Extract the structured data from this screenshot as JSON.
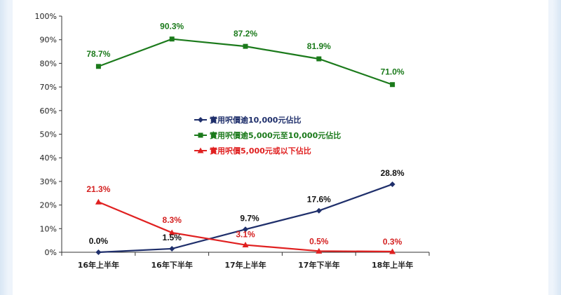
{
  "chart_data": {
    "type": "line",
    "categories": [
      "16年上半年",
      "16年下半年",
      "17年上半年",
      "17年下半年",
      "18年上半年"
    ],
    "ylim": [
      0,
      100
    ],
    "yticks": [
      "0%",
      "10%",
      "20%",
      "30%",
      "40%",
      "50%",
      "60%",
      "70%",
      "80%",
      "90%",
      "100%"
    ],
    "grid": false,
    "legend_position": "center",
    "series": [
      {
        "name": "實用呎價逾10,000元佔比",
        "color": "#1f2f6b",
        "marker": "diamond",
        "values": [
          0.0,
          1.5,
          9.7,
          17.6,
          28.8
        ],
        "labels": [
          "0.0%",
          "1.5%",
          "9.7%",
          "17.6%",
          "28.8%"
        ],
        "label_color": "#111111"
      },
      {
        "name": "實用呎價逾5,000元至10,000元佔比",
        "color": "#1b7a1b",
        "marker": "square",
        "values": [
          78.7,
          90.3,
          87.2,
          81.9,
          71.0
        ],
        "labels": [
          "78.7%",
          "90.3%",
          "87.2%",
          "81.9%",
          "71.0%"
        ],
        "label_color": "#1b7a1b"
      },
      {
        "name": "實用呎價5,000元或以下佔比",
        "color": "#e02020",
        "marker": "triangle",
        "values": [
          21.3,
          8.3,
          3.1,
          0.5,
          0.3
        ],
        "labels": [
          "21.3%",
          "8.3%",
          "3.1%",
          "0.5%",
          "0.3%"
        ],
        "label_color": "#d42020"
      }
    ]
  }
}
